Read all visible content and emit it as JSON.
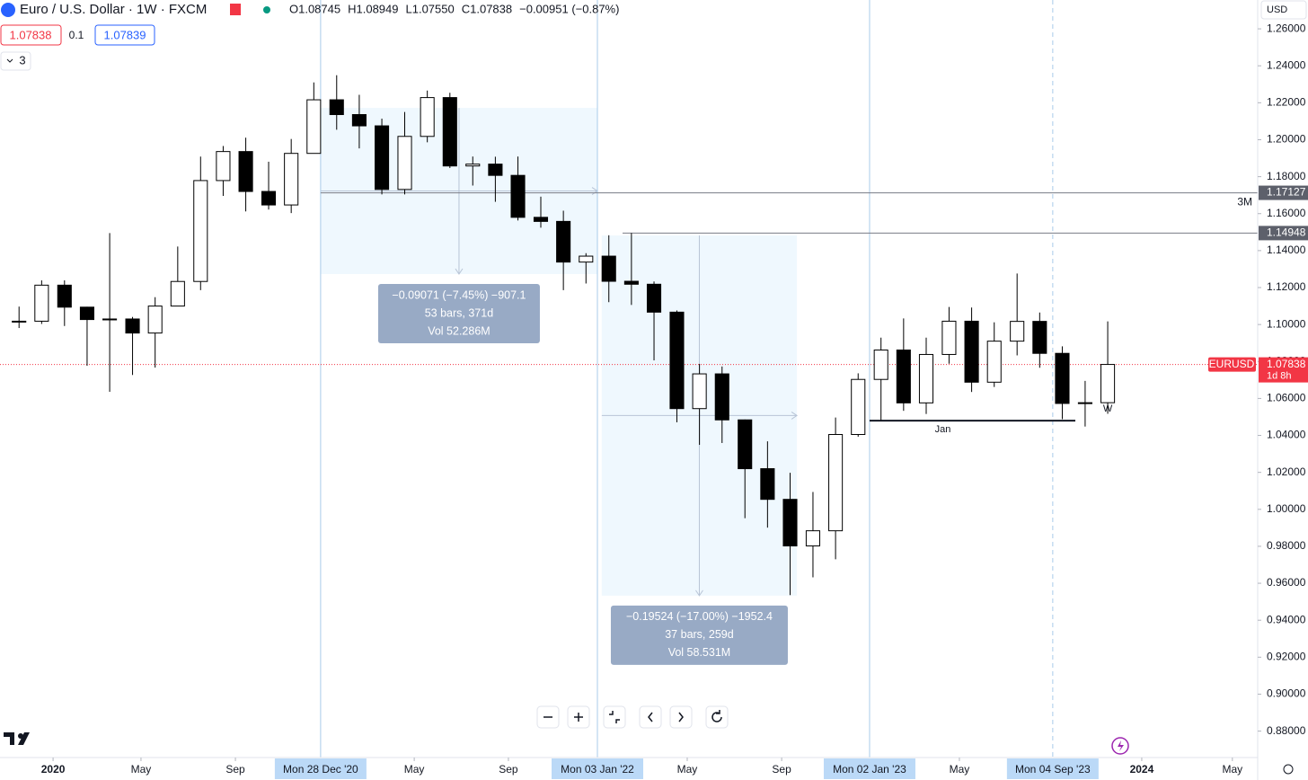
{
  "chart_data": {
    "type": "candlestick",
    "title": "Euro / U.S. Dollar · 1W · FXCM",
    "ohlc_text": [
      "O1.08745",
      "H1.08949",
      "L1.07550",
      "C1.07838",
      "−0.00951 (−0.87%)"
    ],
    "bid": "1.07838",
    "spread": "0.1",
    "ask": "1.07839",
    "indicator_count": "3",
    "currency": "USD",
    "xlim": [
      2019.805,
      2024.426
    ],
    "ylim": [
      0.8657,
      1.2756
    ],
    "xticks": [
      {
        "value": 2020,
        "label": "2020"
      },
      {
        "value": 2020.323,
        "label": "May"
      },
      {
        "value": 2020.67,
        "label": "Sep"
      },
      {
        "value": 2021.327,
        "label": "May"
      },
      {
        "value": 2021.673,
        "label": "Sep"
      },
      {
        "value": 2022.33,
        "label": "May"
      },
      {
        "value": 2022.677,
        "label": "Sep"
      },
      {
        "value": 2023.33,
        "label": "May"
      },
      {
        "value": 2024,
        "label": "2024"
      },
      {
        "value": 2024.333,
        "label": "May"
      }
    ],
    "yticks": [
      {
        "value": 0.88,
        "label": "0.88000"
      },
      {
        "value": 0.9,
        "label": "0.90000"
      },
      {
        "value": 0.92,
        "label": "0.92000"
      },
      {
        "value": 0.94,
        "label": "0.94000"
      },
      {
        "value": 0.96,
        "label": "0.96000"
      },
      {
        "value": 0.98,
        "label": "0.98000"
      },
      {
        "value": 1.0,
        "label": "1.00000"
      },
      {
        "value": 1.02,
        "label": "1.02000"
      },
      {
        "value": 1.04,
        "label": "1.04000"
      },
      {
        "value": 1.06,
        "label": "1.06000"
      },
      {
        "value": 1.08,
        "label": "1.08000"
      },
      {
        "value": 1.1,
        "label": "1.10000"
      },
      {
        "value": 1.12,
        "label": "1.12000"
      },
      {
        "value": 1.14,
        "label": "1.14000"
      },
      {
        "value": 1.16,
        "label": "1.16000"
      },
      {
        "value": 1.18,
        "label": "1.18000"
      },
      {
        "value": 1.2,
        "label": "1.20000"
      },
      {
        "value": 1.22,
        "label": "1.22000"
      },
      {
        "value": 1.24,
        "label": "1.24000"
      },
      {
        "value": 1.26,
        "label": "1.26000"
      }
    ],
    "x": [
      2019.875,
      2019.958,
      2020.042,
      2020.125,
      2020.208,
      2020.292,
      2020.375,
      2020.458,
      2020.542,
      2020.625,
      2020.708,
      2020.792,
      2020.875,
      2020.958,
      2021.042,
      2021.125,
      2021.208,
      2021.292,
      2021.375,
      2021.458,
      2021.542,
      2021.625,
      2021.708,
      2021.792,
      2021.875,
      2021.958,
      2022.042,
      2022.125,
      2022.208,
      2022.292,
      2022.375,
      2022.458,
      2022.542,
      2022.625,
      2022.708,
      2022.792,
      2022.875,
      2022.958,
      2023.042,
      2023.125,
      2023.208,
      2023.292,
      2023.375,
      2023.458,
      2023.542,
      2023.625,
      2023.708,
      2023.792,
      2023.875
    ],
    "open": [
      1.1015,
      1.1018,
      1.1213,
      1.1094,
      1.1027,
      1.103,
      1.0954,
      1.11,
      1.1233,
      1.1779,
      1.1936,
      1.172,
      1.1647,
      1.1926,
      1.2216,
      1.2136,
      1.2075,
      1.1731,
      1.2018,
      1.2228,
      1.1858,
      1.1868,
      1.1807,
      1.158,
      1.1558,
      1.1338,
      1.137,
      1.1234,
      1.1218,
      1.1067,
      1.0545,
      1.0733,
      1.0484,
      1.022,
      1.0054,
      0.9802,
      0.9884,
      1.0405,
      1.0703,
      1.0862,
      1.0576,
      1.0838,
      1.1018,
      1.0688,
      1.091,
      1.1017,
      1.0844,
      1.0573,
      1.0577
    ],
    "high": [
      1.1097,
      1.1239,
      1.1239,
      1.1096,
      1.1495,
      1.1041,
      1.1148,
      1.1422,
      1.1909,
      1.1966,
      1.2011,
      1.1881,
      1.2004,
      1.231,
      1.2349,
      1.2243,
      1.2114,
      1.215,
      1.2266,
      1.2254,
      1.1909,
      1.1908,
      1.1909,
      1.1692,
      1.1616,
      1.1386,
      1.1483,
      1.1495,
      1.1233,
      1.1076,
      1.0787,
      1.0773,
      1.0486,
      1.0368,
      1.0198,
      1.0094,
      1.0497,
      1.0736,
      1.0929,
      1.1033,
      1.0929,
      1.1095,
      1.1092,
      1.1012,
      1.1276,
      1.1065,
      1.0882,
      1.0695,
      1.1017
    ],
    "low": [
      1.0981,
      1.1003,
      1.0992,
      1.0777,
      1.0636,
      1.0727,
      1.0767,
      1.11,
      1.1186,
      1.1696,
      1.1612,
      1.1622,
      1.1603,
      1.1925,
      1.2054,
      1.1953,
      1.1704,
      1.1704,
      1.1986,
      1.1847,
      1.1752,
      1.1664,
      1.1563,
      1.1524,
      1.1186,
      1.1222,
      1.1121,
      1.1106,
      1.0806,
      1.0471,
      1.0349,
      1.0359,
      0.9952,
      0.9901,
      0.9536,
      0.9632,
      0.973,
      1.0393,
      1.0483,
      1.0533,
      1.0516,
      1.0788,
      1.0635,
      1.0662,
      1.0833,
      1.0766,
      1.0488,
      1.0448,
      1.0517
    ],
    "close": [
      1.1018,
      1.1213,
      1.1094,
      1.1027,
      1.103,
      1.0954,
      1.11,
      1.1233,
      1.1779,
      1.1936,
      1.172,
      1.1647,
      1.1926,
      1.2216,
      1.2136,
      1.2075,
      1.1731,
      1.2018,
      1.2228,
      1.1858,
      1.1868,
      1.1807,
      1.158,
      1.1558,
      1.1338,
      1.137,
      1.1234,
      1.1218,
      1.1067,
      1.0545,
      1.0733,
      1.0484,
      1.022,
      1.0054,
      0.9802,
      0.9884,
      1.0405,
      1.0703,
      1.0862,
      1.0576,
      1.0838,
      1.1018,
      1.0688,
      1.091,
      1.1017,
      1.0844,
      1.0573,
      1.0577,
      1.0784
    ],
    "up_color": "#ffffff",
    "down_color": "#000000",
    "last": {
      "value": 1.07838,
      "label": "1.07838",
      "symbol": "EURUSD",
      "countdown": "1d 8h",
      "color": "#f23645"
    },
    "levels": [
      {
        "value": 1.17127,
        "label": "1.17127",
        "note": "3M"
      },
      {
        "value": 1.14948,
        "label": "1.14948"
      }
    ],
    "markers": [
      {
        "value": 2020.983,
        "label": "Mon 28 Dec '20"
      },
      {
        "value": 2022.0,
        "label": "Mon 03 Jan '22"
      },
      {
        "value": 2023.0,
        "label": "Mon 02 Jan '23"
      },
      {
        "value": 2023.673,
        "label": "Mon 04 Sep '23"
      }
    ],
    "measurements": [
      {
        "x1": 2020.983,
        "x2": 2022.0,
        "y1": 1.2172,
        "y2": 1.1273,
        "lines": [
          "−0.09071 (−7.45%) −907.1",
          "53 bars, 371d",
          "Vol 52.286M"
        ]
      },
      {
        "x1": 2022.016,
        "x2": 2022.733,
        "y1": 1.1482,
        "y2": 0.9533,
        "lines": [
          "−0.19524 (−17.00%) −1952.4",
          "37 bars, 259d",
          "Vol 58.531M"
        ]
      }
    ],
    "ranges": [
      {
        "label": "Jan",
        "value": 1.048,
        "x1": 2023.0,
        "x2": 2023.756
      }
    ],
    "annotations": [
      {
        "text": "W",
        "x": 2023.858,
        "y": 1.0544
      }
    ]
  }
}
